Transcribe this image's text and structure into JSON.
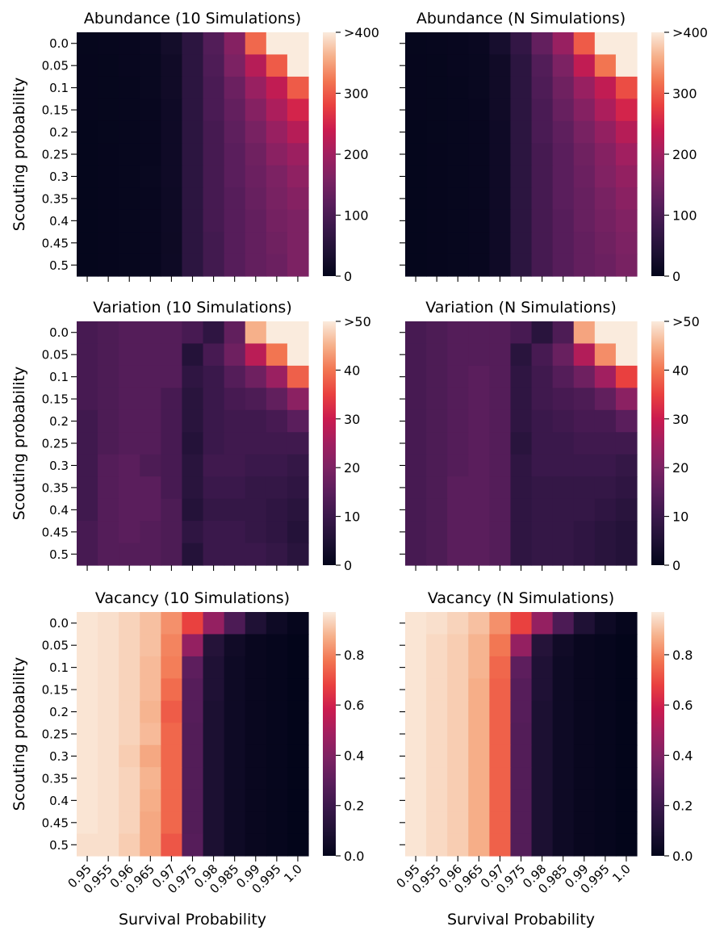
{
  "figure": {
    "ylabel": "Scouting probability",
    "xlabel": "Survival Probability"
  },
  "chart_data": [
    {
      "type": "heatmap",
      "title": "Abundance (10 Simulations)",
      "xlabel": "",
      "ylabel": "Scouting probability",
      "x_categories": [
        "0.95",
        "0.955",
        "0.96",
        "0.965",
        "0.97",
        "0.975",
        "0.98",
        "0.985",
        "0.99",
        "0.995",
        "1.0"
      ],
      "y_categories": [
        "0.0",
        "0.05",
        "0.1",
        "0.15",
        "0.2",
        "0.25",
        "0.3",
        "0.35",
        "0.4",
        "0.45",
        "0.5"
      ],
      "vmin": 0,
      "vmax": 400,
      "cbar_ticks": [
        "0",
        "100",
        "200",
        "300",
        ">400"
      ],
      "values": [
        [
          5,
          6,
          7,
          10,
          25,
          60,
          110,
          170,
          310,
          420,
          420
        ],
        [
          4,
          5,
          7,
          9,
          20,
          60,
          105,
          160,
          220,
          300,
          420
        ],
        [
          4,
          5,
          6,
          9,
          20,
          60,
          100,
          140,
          190,
          230,
          300
        ],
        [
          4,
          5,
          6,
          8,
          18,
          60,
          100,
          130,
          170,
          210,
          250
        ],
        [
          3,
          5,
          6,
          8,
          18,
          60,
          95,
          125,
          155,
          190,
          220
        ],
        [
          3,
          4,
          6,
          8,
          18,
          60,
          95,
          120,
          145,
          175,
          195
        ],
        [
          3,
          4,
          6,
          9,
          18,
          60,
          95,
          120,
          140,
          160,
          180
        ],
        [
          3,
          4,
          6,
          8,
          17,
          60,
          95,
          115,
          135,
          155,
          170
        ],
        [
          3,
          4,
          6,
          8,
          17,
          60,
          95,
          115,
          130,
          150,
          160
        ],
        [
          3,
          4,
          6,
          8,
          16,
          60,
          90,
          115,
          130,
          145,
          160
        ],
        [
          3,
          4,
          6,
          8,
          17,
          60,
          90,
          115,
          130,
          140,
          160
        ]
      ]
    },
    {
      "type": "heatmap",
      "title": "Abundance (N Simulations)",
      "xlabel": "",
      "ylabel": "",
      "x_categories": [
        "0.95",
        "0.955",
        "0.96",
        "0.965",
        "0.97",
        "0.975",
        "0.98",
        "0.985",
        "0.99",
        "0.995",
        "1.0"
      ],
      "y_categories": [
        "0.0",
        "0.05",
        "0.1",
        "0.15",
        "0.2",
        "0.25",
        "0.3",
        "0.35",
        "0.4",
        "0.45",
        "0.5"
      ],
      "vmin": 0,
      "vmax": 400,
      "cbar_ticks": [
        "0",
        "100",
        "200",
        "300",
        ">400"
      ],
      "values": [
        [
          5,
          6,
          7,
          10,
          30,
          70,
          130,
          190,
          300,
          420,
          420
        ],
        [
          4,
          5,
          7,
          9,
          20,
          60,
          110,
          160,
          230,
          320,
          420
        ],
        [
          4,
          5,
          6,
          9,
          20,
          60,
          105,
          145,
          190,
          230,
          290
        ],
        [
          4,
          5,
          6,
          8,
          20,
          60,
          100,
          135,
          170,
          210,
          250
        ],
        [
          3,
          5,
          6,
          8,
          18,
          60,
          100,
          125,
          155,
          185,
          220
        ],
        [
          3,
          4,
          6,
          8,
          18,
          60,
          95,
          120,
          145,
          170,
          200
        ],
        [
          3,
          4,
          6,
          8,
          18,
          60,
          95,
          120,
          140,
          165,
          185
        ],
        [
          3,
          4,
          6,
          8,
          18,
          60,
          95,
          120,
          135,
          155,
          175
        ],
        [
          3,
          4,
          6,
          8,
          18,
          60,
          95,
          115,
          135,
          150,
          165
        ],
        [
          3,
          4,
          6,
          8,
          18,
          60,
          95,
          115,
          130,
          145,
          160
        ],
        [
          3,
          4,
          6,
          8,
          18,
          60,
          95,
          115,
          130,
          140,
          155
        ]
      ]
    },
    {
      "type": "heatmap",
      "title": "Variation (10 Simulations)",
      "xlabel": "",
      "ylabel": "Scouting probability",
      "x_categories": [
        "0.95",
        "0.955",
        "0.96",
        "0.965",
        "0.97",
        "0.975",
        "0.98",
        "0.985",
        "0.99",
        "0.995",
        "1.0"
      ],
      "y_categories": [
        "0.0",
        "0.05",
        "0.1",
        "0.15",
        "0.2",
        "0.25",
        "0.3",
        "0.35",
        "0.4",
        "0.45",
        "0.5"
      ],
      "vmin": 0,
      "vmax": 50,
      "cbar_ticks": [
        "0",
        "10",
        "20",
        "30",
        "40",
        ">50"
      ],
      "values": [
        [
          12,
          13,
          14,
          14,
          14,
          12,
          8,
          16,
          45,
          52,
          52
        ],
        [
          12,
          13,
          14,
          14,
          14,
          6,
          12,
          18,
          28,
          40,
          52
        ],
        [
          12,
          13,
          14,
          14,
          14,
          8,
          10,
          14,
          18,
          24,
          38
        ],
        [
          12,
          13,
          14,
          14,
          12,
          7,
          10,
          12,
          13,
          16,
          22
        ],
        [
          11,
          13,
          14,
          14,
          12,
          7,
          10,
          11,
          11,
          12,
          15
        ],
        [
          11,
          13,
          14,
          14,
          12,
          6,
          10,
          11,
          11,
          11,
          11
        ],
        [
          11,
          14,
          15,
          13,
          12,
          7,
          11,
          11,
          10,
          10,
          9
        ],
        [
          11,
          14,
          15,
          15,
          12,
          7,
          10,
          10,
          9,
          9,
          8
        ],
        [
          11,
          14,
          15,
          15,
          13,
          6,
          9,
          9,
          9,
          8,
          7
        ],
        [
          12,
          14,
          15,
          14,
          13,
          8,
          10,
          10,
          9,
          8,
          6
        ],
        [
          12,
          14,
          14,
          14,
          13,
          6,
          10,
          10,
          10,
          9,
          7
        ]
      ]
    },
    {
      "type": "heatmap",
      "title": "Variation (N Simulations)",
      "xlabel": "",
      "ylabel": "",
      "x_categories": [
        "0.95",
        "0.955",
        "0.96",
        "0.965",
        "0.97",
        "0.975",
        "0.98",
        "0.985",
        "0.99",
        "0.995",
        "1.0"
      ],
      "y_categories": [
        "0.0",
        "0.05",
        "0.1",
        "0.15",
        "0.2",
        "0.25",
        "0.3",
        "0.35",
        "0.4",
        "0.45",
        "0.5"
      ],
      "vmin": 0,
      "vmax": 50,
      "cbar_ticks": [
        "0",
        "10",
        "20",
        "30",
        "40",
        ">50"
      ],
      "values": [
        [
          12,
          13,
          14,
          14,
          14,
          12,
          7,
          13,
          44,
          52,
          52
        ],
        [
          12,
          13,
          14,
          14,
          14,
          7,
          12,
          17,
          27,
          42,
          52
        ],
        [
          12,
          13,
          14,
          15,
          14,
          8,
          11,
          14,
          18,
          25,
          35
        ],
        [
          12,
          13,
          14,
          15,
          14,
          8,
          11,
          12,
          13,
          16,
          22
        ],
        [
          12,
          13,
          14,
          15,
          14,
          8,
          10,
          11,
          12,
          12,
          15
        ],
        [
          12,
          13,
          14,
          15,
          14,
          7,
          10,
          10,
          11,
          11,
          11
        ],
        [
          12,
          13,
          14,
          15,
          14,
          8,
          10,
          10,
          10,
          10,
          9
        ],
        [
          12,
          13,
          15,
          15,
          14,
          8,
          9,
          9,
          9,
          9,
          8
        ],
        [
          12,
          13,
          15,
          15,
          14,
          8,
          9,
          9,
          9,
          8,
          7
        ],
        [
          12,
          13,
          15,
          15,
          14,
          8,
          9,
          9,
          8,
          7,
          6
        ],
        [
          12,
          13,
          15,
          15,
          14,
          8,
          9,
          9,
          8,
          7,
          6
        ]
      ]
    },
    {
      "type": "heatmap",
      "title": "Vacancy (10 Simulations)",
      "xlabel": "Survival Probability",
      "ylabel": "Scouting probability",
      "x_categories": [
        "0.95",
        "0.955",
        "0.96",
        "0.965",
        "0.97",
        "0.975",
        "0.98",
        "0.985",
        "0.99",
        "0.995",
        "1.0"
      ],
      "y_categories": [
        "0.0",
        "0.05",
        "0.1",
        "0.15",
        "0.2",
        "0.25",
        "0.3",
        "0.35",
        "0.4",
        "0.45",
        "0.5"
      ],
      "vmin": 0,
      "vmax": 0.97,
      "cbar_ticks": [
        "0.0",
        "0.2",
        "0.4",
        "0.6",
        "0.8"
      ],
      "values": [
        [
          0.96,
          0.95,
          0.93,
          0.9,
          0.82,
          0.68,
          0.45,
          0.25,
          0.1,
          0.04,
          0.01
        ],
        [
          0.96,
          0.95,
          0.93,
          0.9,
          0.8,
          0.45,
          0.12,
          0.05,
          0.02,
          0.01,
          0.0
        ],
        [
          0.96,
          0.95,
          0.93,
          0.89,
          0.79,
          0.3,
          0.1,
          0.04,
          0.02,
          0.01,
          0.0
        ],
        [
          0.96,
          0.95,
          0.93,
          0.89,
          0.76,
          0.28,
          0.1,
          0.04,
          0.02,
          0.01,
          0.0
        ],
        [
          0.96,
          0.95,
          0.93,
          0.88,
          0.73,
          0.28,
          0.09,
          0.04,
          0.02,
          0.01,
          0.0
        ],
        [
          0.96,
          0.95,
          0.93,
          0.89,
          0.75,
          0.27,
          0.09,
          0.04,
          0.02,
          0.01,
          0.0
        ],
        [
          0.96,
          0.95,
          0.92,
          0.86,
          0.75,
          0.27,
          0.09,
          0.04,
          0.02,
          0.01,
          0.0
        ],
        [
          0.96,
          0.95,
          0.93,
          0.88,
          0.75,
          0.27,
          0.09,
          0.04,
          0.02,
          0.01,
          0.0
        ],
        [
          0.96,
          0.95,
          0.93,
          0.87,
          0.75,
          0.27,
          0.09,
          0.04,
          0.02,
          0.01,
          0.0
        ],
        [
          0.96,
          0.95,
          0.93,
          0.86,
          0.75,
          0.27,
          0.09,
          0.04,
          0.02,
          0.01,
          0.0
        ],
        [
          0.95,
          0.95,
          0.92,
          0.86,
          0.72,
          0.28,
          0.09,
          0.04,
          0.02,
          0.01,
          0.0
        ]
      ]
    },
    {
      "type": "heatmap",
      "title": "Vacancy (N Simulations)",
      "xlabel": "Survival Probability",
      "ylabel": "",
      "x_categories": [
        "0.95",
        "0.955",
        "0.96",
        "0.965",
        "0.97",
        "0.975",
        "0.98",
        "0.985",
        "0.99",
        "0.995",
        "1.0"
      ],
      "y_categories": [
        "0.0",
        "0.05",
        "0.1",
        "0.15",
        "0.2",
        "0.25",
        "0.3",
        "0.35",
        "0.4",
        "0.45",
        "0.5"
      ],
      "vmin": 0,
      "vmax": 0.97,
      "cbar_ticks": [
        "0.0",
        "0.2",
        "0.4",
        "0.6",
        "0.8"
      ],
      "values": [
        [
          0.96,
          0.95,
          0.93,
          0.9,
          0.82,
          0.68,
          0.45,
          0.25,
          0.1,
          0.04,
          0.01
        ],
        [
          0.96,
          0.94,
          0.92,
          0.88,
          0.78,
          0.45,
          0.12,
          0.05,
          0.02,
          0.01,
          0.0
        ],
        [
          0.96,
          0.94,
          0.92,
          0.88,
          0.75,
          0.3,
          0.1,
          0.04,
          0.02,
          0.01,
          0.0
        ],
        [
          0.96,
          0.94,
          0.92,
          0.87,
          0.74,
          0.28,
          0.1,
          0.04,
          0.02,
          0.01,
          0.0
        ],
        [
          0.96,
          0.94,
          0.92,
          0.87,
          0.74,
          0.28,
          0.09,
          0.04,
          0.02,
          0.01,
          0.0
        ],
        [
          0.96,
          0.94,
          0.92,
          0.87,
          0.74,
          0.27,
          0.09,
          0.04,
          0.02,
          0.01,
          0.0
        ],
        [
          0.96,
          0.94,
          0.92,
          0.87,
          0.74,
          0.27,
          0.09,
          0.04,
          0.02,
          0.01,
          0.0
        ],
        [
          0.96,
          0.94,
          0.92,
          0.87,
          0.74,
          0.27,
          0.09,
          0.04,
          0.02,
          0.01,
          0.0
        ],
        [
          0.96,
          0.94,
          0.92,
          0.87,
          0.74,
          0.27,
          0.09,
          0.04,
          0.02,
          0.01,
          0.0
        ],
        [
          0.96,
          0.94,
          0.92,
          0.87,
          0.74,
          0.27,
          0.09,
          0.04,
          0.02,
          0.01,
          0.0
        ],
        [
          0.96,
          0.94,
          0.92,
          0.87,
          0.74,
          0.27,
          0.09,
          0.04,
          0.02,
          0.01,
          0.0
        ]
      ]
    }
  ]
}
